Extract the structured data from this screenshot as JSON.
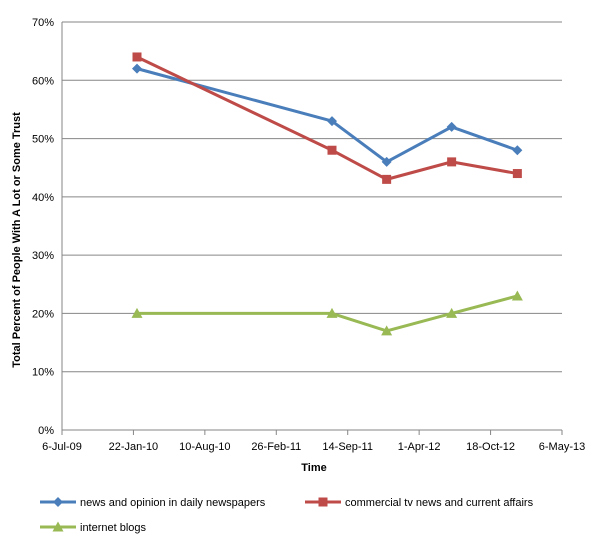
{
  "chart_data": {
    "type": "line",
    "title": "",
    "xlabel": "Time",
    "ylabel": "Total Percent of People With A Lot or Some Trust",
    "x_ticks": [
      "6-Jul-09",
      "22-Jan-10",
      "10-Aug-10",
      "26-Feb-11",
      "14-Sep-11",
      "1-Apr-12",
      "18-Oct-12",
      "6-May-13"
    ],
    "y_ticks": [
      "0%",
      "10%",
      "20%",
      "30%",
      "40%",
      "50%",
      "60%",
      "70%"
    ],
    "xlim": [
      "2009-07-06",
      "2013-05-06"
    ],
    "ylim": [
      0,
      70
    ],
    "y_unit": "%",
    "grid": "horizontal",
    "legend_position": "bottom",
    "series": [
      {
        "name": "news and opinion in daily newspapers",
        "color": "#4A7EBB",
        "marker": "diamond",
        "points": [
          {
            "x": "2010-02-01",
            "y": 62
          },
          {
            "x": "2011-08-01",
            "y": 53
          },
          {
            "x": "2012-01-01",
            "y": 46
          },
          {
            "x": "2012-07-01",
            "y": 52
          },
          {
            "x": "2013-01-01",
            "y": 48
          }
        ]
      },
      {
        "name": "commercial tv news and current affairs",
        "color": "#BE4B48",
        "marker": "square",
        "points": [
          {
            "x": "2010-02-01",
            "y": 64
          },
          {
            "x": "2011-08-01",
            "y": 48
          },
          {
            "x": "2012-01-01",
            "y": 43
          },
          {
            "x": "2012-07-01",
            "y": 46
          },
          {
            "x": "2013-01-01",
            "y": 44
          }
        ]
      },
      {
        "name": "internet blogs",
        "color": "#98B954",
        "marker": "triangle",
        "points": [
          {
            "x": "2010-02-01",
            "y": 20
          },
          {
            "x": "2011-08-01",
            "y": 20
          },
          {
            "x": "2012-01-01",
            "y": 17
          },
          {
            "x": "2012-07-01",
            "y": 20
          },
          {
            "x": "2013-01-01",
            "y": 23
          }
        ]
      }
    ]
  }
}
